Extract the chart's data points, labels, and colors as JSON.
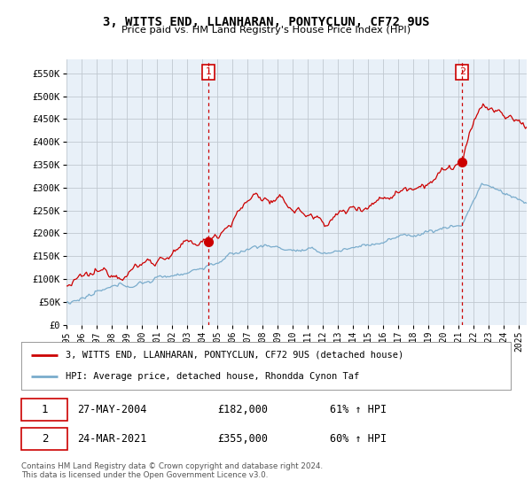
{
  "title": "3, WITTS END, LLANHARAN, PONTYCLUN, CF72 9US",
  "subtitle": "Price paid vs. HM Land Registry's House Price Index (HPI)",
  "legend_line1": "3, WITTS END, LLANHARAN, PONTYCLUN, CF72 9US (detached house)",
  "legend_line2": "HPI: Average price, detached house, Rhondda Cynon Taf",
  "footnote": "Contains HM Land Registry data © Crown copyright and database right 2024.\nThis data is licensed under the Open Government Licence v3.0.",
  "transaction1_date": "27-MAY-2004",
  "transaction1_price": "£182,000",
  "transaction1_hpi": "61% ↑ HPI",
  "transaction2_date": "24-MAR-2021",
  "transaction2_price": "£355,000",
  "transaction2_hpi": "60% ↑ HPI",
  "vline1_x": 2004.41,
  "vline2_x": 2021.23,
  "marker1_y": 182000,
  "marker2_y": 355000,
  "red_color": "#cc0000",
  "blue_color": "#7aaccc",
  "vline_color": "#cc0000",
  "ylim": [
    0,
    580000
  ],
  "xlim_start": 1995.0,
  "xlim_end": 2025.5,
  "yticks": [
    0,
    50000,
    100000,
    150000,
    200000,
    250000,
    300000,
    350000,
    400000,
    450000,
    500000,
    550000
  ],
  "ytick_labels": [
    "£0",
    "£50K",
    "£100K",
    "£150K",
    "£200K",
    "£250K",
    "£300K",
    "£350K",
    "£400K",
    "£450K",
    "£500K",
    "£550K"
  ],
  "xticks": [
    1995,
    1996,
    1997,
    1998,
    1999,
    2000,
    2001,
    2002,
    2003,
    2004,
    2005,
    2006,
    2007,
    2008,
    2009,
    2010,
    2011,
    2012,
    2013,
    2014,
    2015,
    2016,
    2017,
    2018,
    2019,
    2020,
    2021,
    2022,
    2023,
    2024,
    2025
  ],
  "background_color": "#e8f0f8",
  "plot_bg_color": "#e8f0f8",
  "grid_color": "#c0c8d0"
}
